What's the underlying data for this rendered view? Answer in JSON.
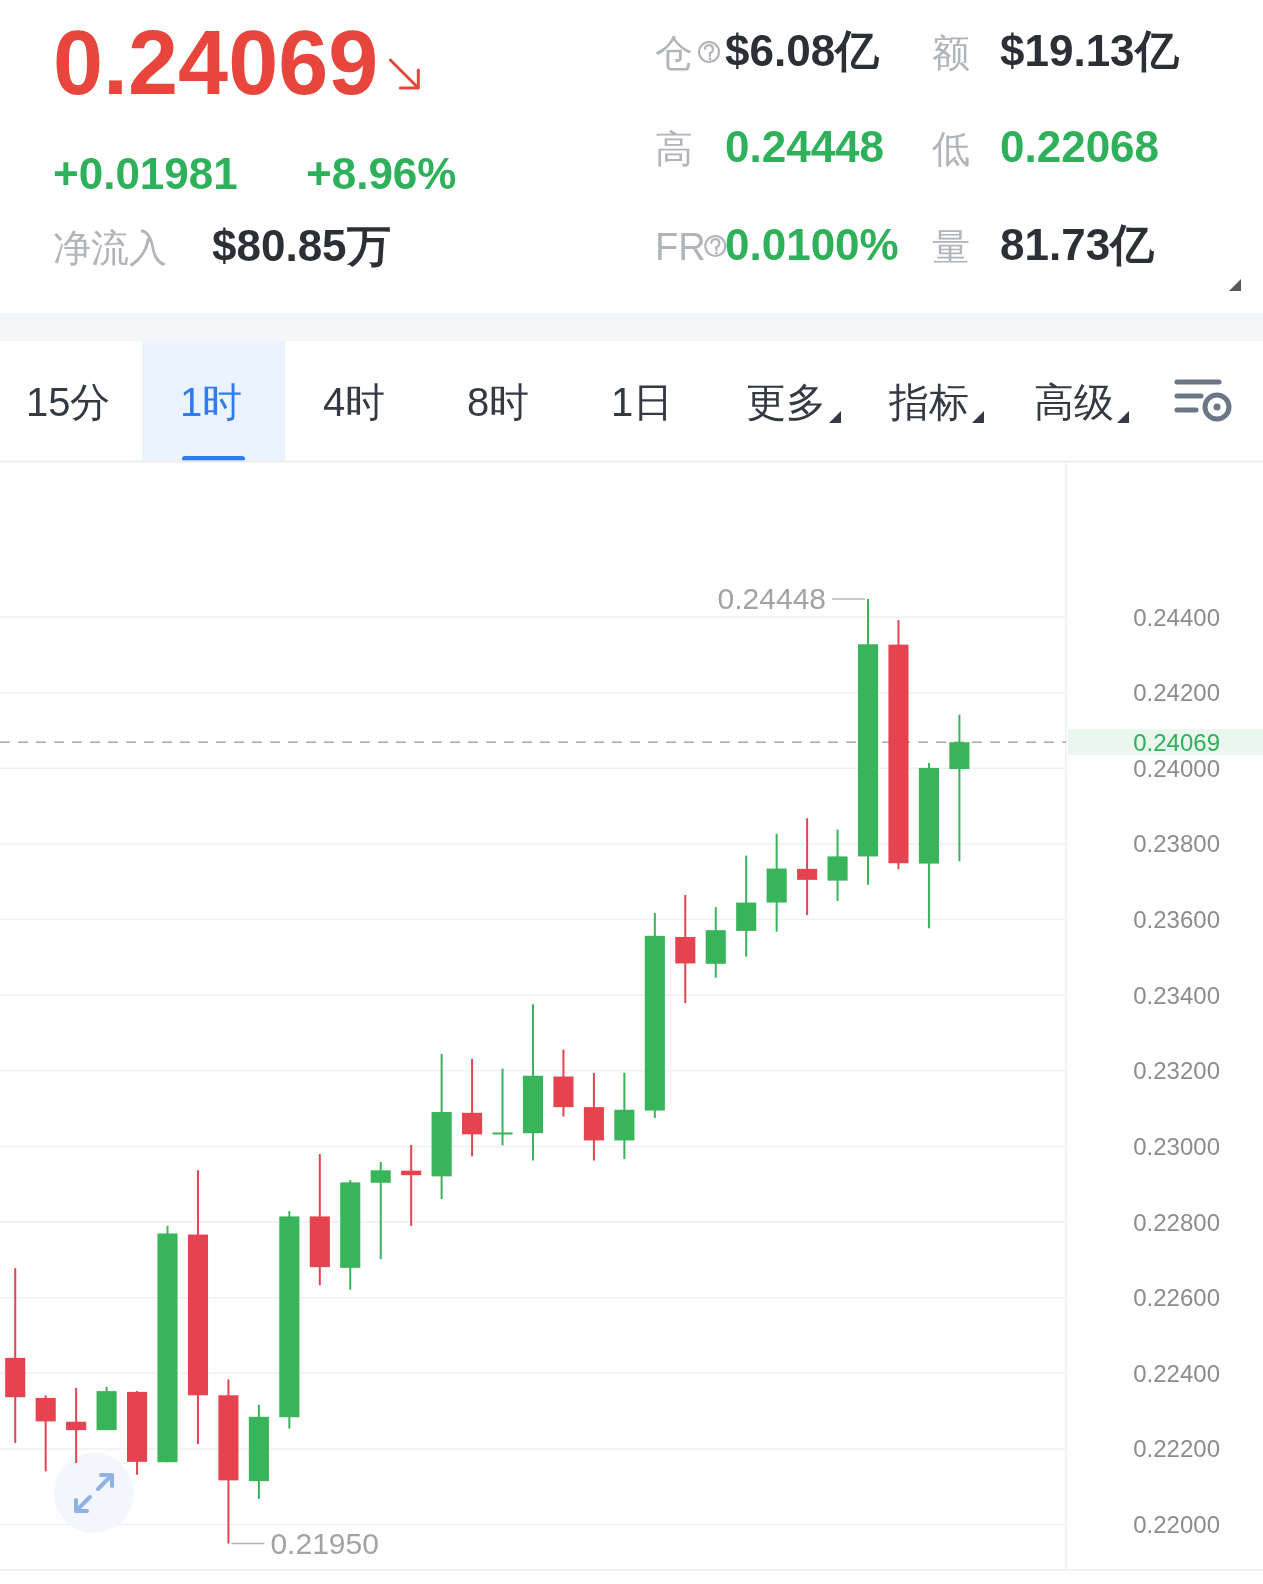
{
  "chart_data": [
    {
      "type": "other",
      "title": "0.24069",
      "annotations": [
        "+0.01981",
        "+8.96%",
        "净流入",
        "$80.85万",
        "仓",
        "$6.08亿",
        "额",
        "$19.13亿",
        "高",
        "0.24448",
        "低",
        "0.22068",
        "FR",
        "0.0100%",
        "量",
        "81.73亿"
      ]
    },
    {
      "type": "other",
      "annotations": [
        "15分",
        "1时",
        "4时",
        "8时",
        "1日",
        "更多",
        "指标",
        "高级"
      ]
    },
    {
      "type": "candlestick",
      "categories": [
        null,
        null,
        null,
        null,
        null,
        null,
        null,
        null,
        null,
        null,
        null,
        null,
        null,
        null,
        null,
        null,
        null,
        null,
        null,
        null,
        null,
        null,
        null,
        null,
        null,
        null,
        null,
        null,
        null,
        null,
        null,
        null,
        null,
        null,
        null
      ],
      "ohlc": [
        [
          0.22441,
          0.22678,
          0.22216,
          0.22337
        ],
        [
          0.22335,
          0.22342,
          0.22141,
          0.22273
        ],
        [
          0.22272,
          0.22362,
          0.22163,
          0.2225
        ],
        [
          0.2225,
          0.22364,
          0.2225,
          0.22353
        ],
        [
          0.22351,
          0.22353,
          0.22132,
          0.22166
        ],
        [
          0.22165,
          0.2279,
          0.22165,
          0.2277
        ],
        [
          0.22767,
          0.22937,
          0.22213,
          0.22342
        ],
        [
          0.22342,
          0.22384,
          0.2195,
          0.22117
        ],
        [
          0.22115,
          0.22317,
          0.22068,
          0.22285
        ],
        [
          0.22284,
          0.22829,
          0.22254,
          0.22815
        ],
        [
          0.22815,
          0.2298,
          0.22633,
          0.22681
        ],
        [
          0.22679,
          0.22911,
          0.22621,
          0.22905
        ],
        [
          0.22904,
          0.22959,
          0.22702,
          0.22937
        ],
        [
          0.22936,
          0.23004,
          0.2279,
          0.22924
        ],
        [
          0.22921,
          0.23245,
          0.22861,
          0.23091
        ],
        [
          0.23089,
          0.23232,
          0.22974,
          0.23032
        ],
        [
          0.23035,
          0.23206,
          0.23003,
          0.23037
        ],
        [
          0.23035,
          0.23376,
          0.22963,
          0.23187
        ],
        [
          0.23185,
          0.23256,
          0.23079,
          0.23104
        ],
        [
          0.23104,
          0.23194,
          0.22963,
          0.23016
        ],
        [
          0.23016,
          0.23195,
          0.22967,
          0.23097
        ],
        [
          0.23095,
          0.23617,
          0.23075,
          0.23557
        ],
        [
          0.23554,
          0.23665,
          0.23379,
          0.23484
        ],
        [
          0.23483,
          0.23633,
          0.23446,
          0.23572
        ],
        [
          0.2357,
          0.23769,
          0.23502,
          0.23645
        ],
        [
          0.23645,
          0.23827,
          0.23568,
          0.23735
        ],
        [
          0.23734,
          0.23868,
          0.23612,
          0.23705
        ],
        [
          0.23703,
          0.23838,
          0.23649,
          0.23767
        ],
        [
          0.23767,
          0.24448,
          0.23692,
          0.24328
        ],
        [
          0.24327,
          0.24392,
          0.23733,
          0.23749
        ],
        [
          0.23748,
          0.24014,
          0.23577,
          0.24001
        ],
        [
          0.23998,
          0.24142,
          0.23754,
          0.24069
        ],
        null,
        null,
        null
      ],
      "colors": [
        "#e5434f",
        "#e5434f",
        "#e5434f",
        "#38b45a",
        "#e5434f",
        "#38b45a",
        "#e5434f",
        "#e5434f",
        "#38b45a",
        "#38b45a",
        "#e5434f",
        "#38b45a",
        "#38b45a",
        "#e5434f",
        "#38b45a",
        "#e5434f",
        "#38b45a",
        "#38b45a",
        "#e5434f",
        "#e5434f",
        "#38b45a",
        "#38b45a",
        "#e5434f",
        "#38b45a",
        "#38b45a",
        "#38b45a",
        "#e5434f",
        "#38b45a",
        "#38b45a",
        "#e5434f",
        "#38b45a",
        "#38b45a",
        null,
        null,
        null
      ],
      "ylim": [
        0.2188,
        0.2481
      ],
      "yticks": [
        {
          "value": 0.22,
          "label": "0.22000"
        },
        {
          "value": 0.222,
          "label": "0.22200"
        },
        {
          "value": 0.224,
          "label": "0.22400"
        },
        {
          "value": 0.226,
          "label": "0.22600"
        },
        {
          "value": 0.228,
          "label": "0.22800"
        },
        {
          "value": 0.23,
          "label": "0.23000"
        },
        {
          "value": 0.232,
          "label": "0.23200"
        },
        {
          "value": 0.234,
          "label": "0.23400"
        },
        {
          "value": 0.236,
          "label": "0.23600"
        },
        {
          "value": 0.238,
          "label": "0.23800"
        },
        {
          "value": 0.24,
          "label": "0.24000"
        },
        {
          "value": 0.242,
          "label": "0.24200"
        },
        {
          "value": 0.244,
          "label": "0.24400"
        }
      ],
      "grid": "y",
      "ref_lines": [
        {
          "axis": "y",
          "value": 0.24069,
          "label": "0.24069",
          "color": "#a8a8a8",
          "line_style": "dashed"
        }
      ],
      "annotations": [
        "0.24448",
        "0.21950"
      ]
    }
  ]
}
